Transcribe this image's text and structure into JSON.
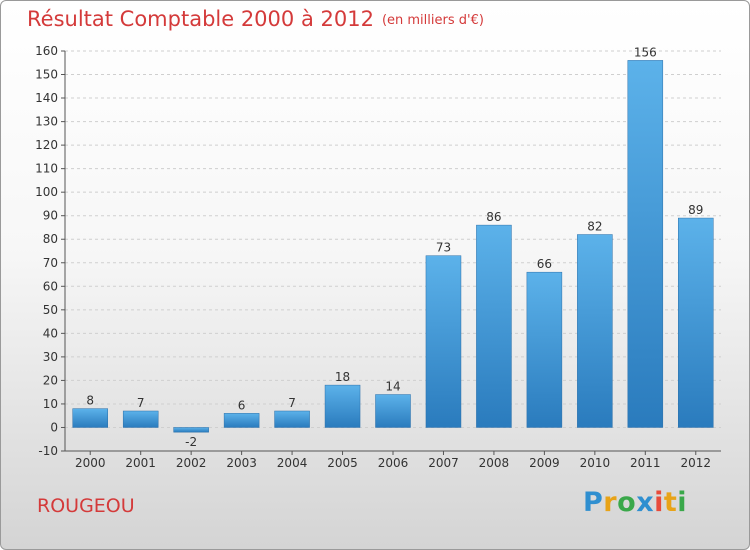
{
  "title": "Résultat Comptable 2000 à 2012",
  "unit_note": "(en milliers d'€)",
  "commune": "ROUGEOU",
  "brand": {
    "letters": [
      "P",
      "r",
      "o",
      "x",
      "i",
      "t",
      "i"
    ],
    "colors": [
      "#2f8fd0",
      "#e8a317",
      "#3aa84a",
      "#2f8fd0",
      "#e84a3a",
      "#e8a317",
      "#3aa84a"
    ]
  },
  "colors": {
    "bar": "#4a9fdc",
    "title": "#d43a3a",
    "grid": "#cfcfcf"
  },
  "chart_data": {
    "type": "bar",
    "categories": [
      "2000",
      "2001",
      "2002",
      "2003",
      "2004",
      "2005",
      "2006",
      "2007",
      "2008",
      "2009",
      "2010",
      "2011",
      "2012"
    ],
    "values": [
      8,
      7,
      -2,
      6,
      7,
      18,
      14,
      73,
      86,
      66,
      82,
      156,
      89
    ],
    "ylim": [
      -10,
      160
    ],
    "yticks": [
      -10,
      0,
      10,
      20,
      30,
      40,
      50,
      60,
      70,
      80,
      90,
      100,
      110,
      120,
      130,
      140,
      150,
      160
    ],
    "grid": "horizontal",
    "legend": "none"
  }
}
